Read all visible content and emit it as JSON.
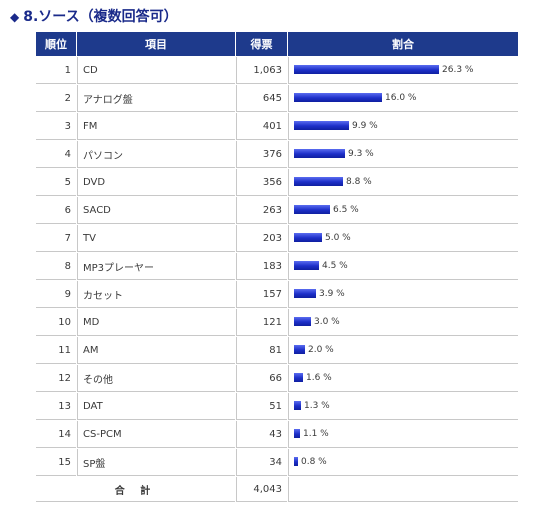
{
  "page": {
    "title": "8.ソース（複数回答可）",
    "title_icon": "diamond-icon"
  },
  "table": {
    "headers": {
      "rank": "順位",
      "item": "項目",
      "votes": "得票",
      "ratio": "割合"
    },
    "total_label": "合 計",
    "total_votes": "4,043"
  },
  "colors": {
    "header_bg": "#1e3a8c",
    "bar": "#1d2fc8",
    "title": "#1a2a8a"
  },
  "chart_data": {
    "type": "bar",
    "categories": [
      "CD",
      "アナログ盤",
      "FM",
      "パソコン",
      "DVD",
      "SACD",
      "TV",
      "MP3プレーヤー",
      "カセット",
      "MD",
      "AM",
      "その他",
      "DAT",
      "CS-PCM",
      "SP盤"
    ],
    "values": [
      26.3,
      16.0,
      9.9,
      9.3,
      8.8,
      6.5,
      5.0,
      4.5,
      3.9,
      3.0,
      2.0,
      1.6,
      1.3,
      1.1,
      0.8
    ],
    "rows": [
      {
        "rank": "1",
        "item": "CD",
        "votes": "1,063",
        "pct": 26.3,
        "pct_label": "26.3 %"
      },
      {
        "rank": "2",
        "item": "アナログ盤",
        "votes": "645",
        "pct": 16.0,
        "pct_label": "16.0 %"
      },
      {
        "rank": "3",
        "item": "FM",
        "votes": "401",
        "pct": 9.9,
        "pct_label": "9.9 %"
      },
      {
        "rank": "4",
        "item": "パソコン",
        "votes": "376",
        "pct": 9.3,
        "pct_label": "9.3 %"
      },
      {
        "rank": "5",
        "item": "DVD",
        "votes": "356",
        "pct": 8.8,
        "pct_label": "8.8 %"
      },
      {
        "rank": "6",
        "item": "SACD",
        "votes": "263",
        "pct": 6.5,
        "pct_label": "6.5 %"
      },
      {
        "rank": "7",
        "item": "TV",
        "votes": "203",
        "pct": 5.0,
        "pct_label": "5.0 %"
      },
      {
        "rank": "8",
        "item": "MP3プレーヤー",
        "votes": "183",
        "pct": 4.5,
        "pct_label": "4.5 %"
      },
      {
        "rank": "9",
        "item": "カセット",
        "votes": "157",
        "pct": 3.9,
        "pct_label": "3.9 %"
      },
      {
        "rank": "10",
        "item": "MD",
        "votes": "121",
        "pct": 3.0,
        "pct_label": "3.0 %"
      },
      {
        "rank": "11",
        "item": "AM",
        "votes": "81",
        "pct": 2.0,
        "pct_label": "2.0 %"
      },
      {
        "rank": "12",
        "item": "その他",
        "votes": "66",
        "pct": 1.6,
        "pct_label": "1.6 %"
      },
      {
        "rank": "13",
        "item": "DAT",
        "votes": "51",
        "pct": 1.3,
        "pct_label": "1.3 %"
      },
      {
        "rank": "14",
        "item": "CS-PCM",
        "votes": "43",
        "pct": 1.1,
        "pct_label": "1.1 %"
      },
      {
        "rank": "15",
        "item": "SP盤",
        "votes": "34",
        "pct": 0.8,
        "pct_label": "0.8 %"
      }
    ]
  }
}
